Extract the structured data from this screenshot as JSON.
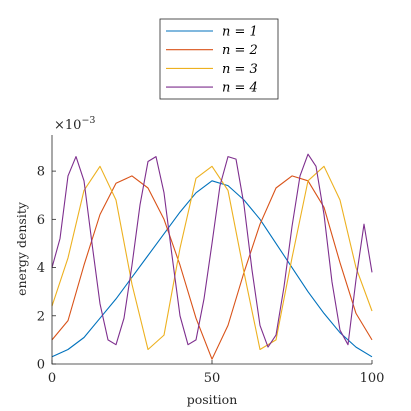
{
  "chart_data": {
    "type": "line",
    "xlabel": "position",
    "ylabel": "energy density",
    "exponent_label": "×10",
    "exponent_power": "−3",
    "xlim": [
      0,
      100
    ],
    "ylim": [
      0,
      0.009
    ],
    "x_ticks": [
      0,
      50,
      100
    ],
    "y_ticks": [
      0,
      2,
      4,
      6,
      8
    ],
    "grid": false,
    "legend_position": "top-center, outside",
    "series": [
      {
        "name": "n = 1",
        "color": "#0072BD",
        "x": [
          0,
          5,
          10,
          15,
          20,
          25,
          30,
          35,
          40,
          45,
          50,
          55,
          60,
          65,
          70,
          75,
          80,
          85,
          90,
          95,
          100
        ],
        "y": [
          0.0003,
          0.0006,
          0.0011,
          0.0019,
          0.0027,
          0.0036,
          0.0045,
          0.0054,
          0.0063,
          0.0071,
          0.0076,
          0.0074,
          0.0068,
          0.006,
          0.005,
          0.004,
          0.003,
          0.0021,
          0.0013,
          0.0007,
          0.0003
        ]
      },
      {
        "name": "n = 2",
        "color": "#D95319",
        "x": [
          0,
          5,
          10,
          15,
          20,
          25,
          30,
          35,
          40,
          45,
          50,
          55,
          60,
          65,
          70,
          75,
          80,
          85,
          90,
          95,
          100
        ],
        "y": [
          0.001,
          0.0018,
          0.0041,
          0.0062,
          0.0075,
          0.0078,
          0.0073,
          0.006,
          0.0041,
          0.0019,
          0.0002,
          0.0016,
          0.0038,
          0.0058,
          0.0073,
          0.0078,
          0.0076,
          0.0065,
          0.0042,
          0.0021,
          0.001
        ]
      },
      {
        "name": "n = 3",
        "color": "#EDB120",
        "x": [
          0,
          5,
          10,
          15,
          20,
          25,
          30,
          35,
          40,
          45,
          50,
          55,
          60,
          65,
          70,
          75,
          80,
          85,
          90,
          95,
          100
        ],
        "y": [
          0.0024,
          0.0044,
          0.0072,
          0.0082,
          0.0068,
          0.0033,
          0.0006,
          0.0012,
          0.0048,
          0.0077,
          0.0082,
          0.0072,
          0.0038,
          0.0006,
          0.001,
          0.0044,
          0.0076,
          0.0082,
          0.0068,
          0.004,
          0.0022
        ]
      },
      {
        "name": "n = 4",
        "color": "#7E2F8E",
        "x": [
          0,
          2.5,
          5,
          7.5,
          10,
          12.5,
          15,
          17.5,
          20,
          22.5,
          25,
          27.5,
          30,
          32.5,
          35,
          37.5,
          40,
          42.5,
          45,
          47.5,
          50,
          52.5,
          55,
          57.5,
          60,
          62.5,
          65,
          67.5,
          70,
          72.5,
          75,
          77.5,
          80,
          82.5,
          85,
          87.5,
          90,
          92.5,
          95,
          97.5,
          100
        ],
        "y": [
          0.004,
          0.0052,
          0.0078,
          0.0086,
          0.0076,
          0.005,
          0.0025,
          0.001,
          0.0008,
          0.0019,
          0.0041,
          0.0066,
          0.0084,
          0.0086,
          0.0071,
          0.0045,
          0.002,
          0.0008,
          0.001,
          0.0027,
          0.005,
          0.0074,
          0.0086,
          0.0085,
          0.0066,
          0.0039,
          0.0016,
          0.0007,
          0.0012,
          0.0032,
          0.0057,
          0.0078,
          0.0087,
          0.0082,
          0.0062,
          0.0034,
          0.0014,
          0.0008,
          0.0035,
          0.0058,
          0.0038
        ]
      }
    ]
  }
}
